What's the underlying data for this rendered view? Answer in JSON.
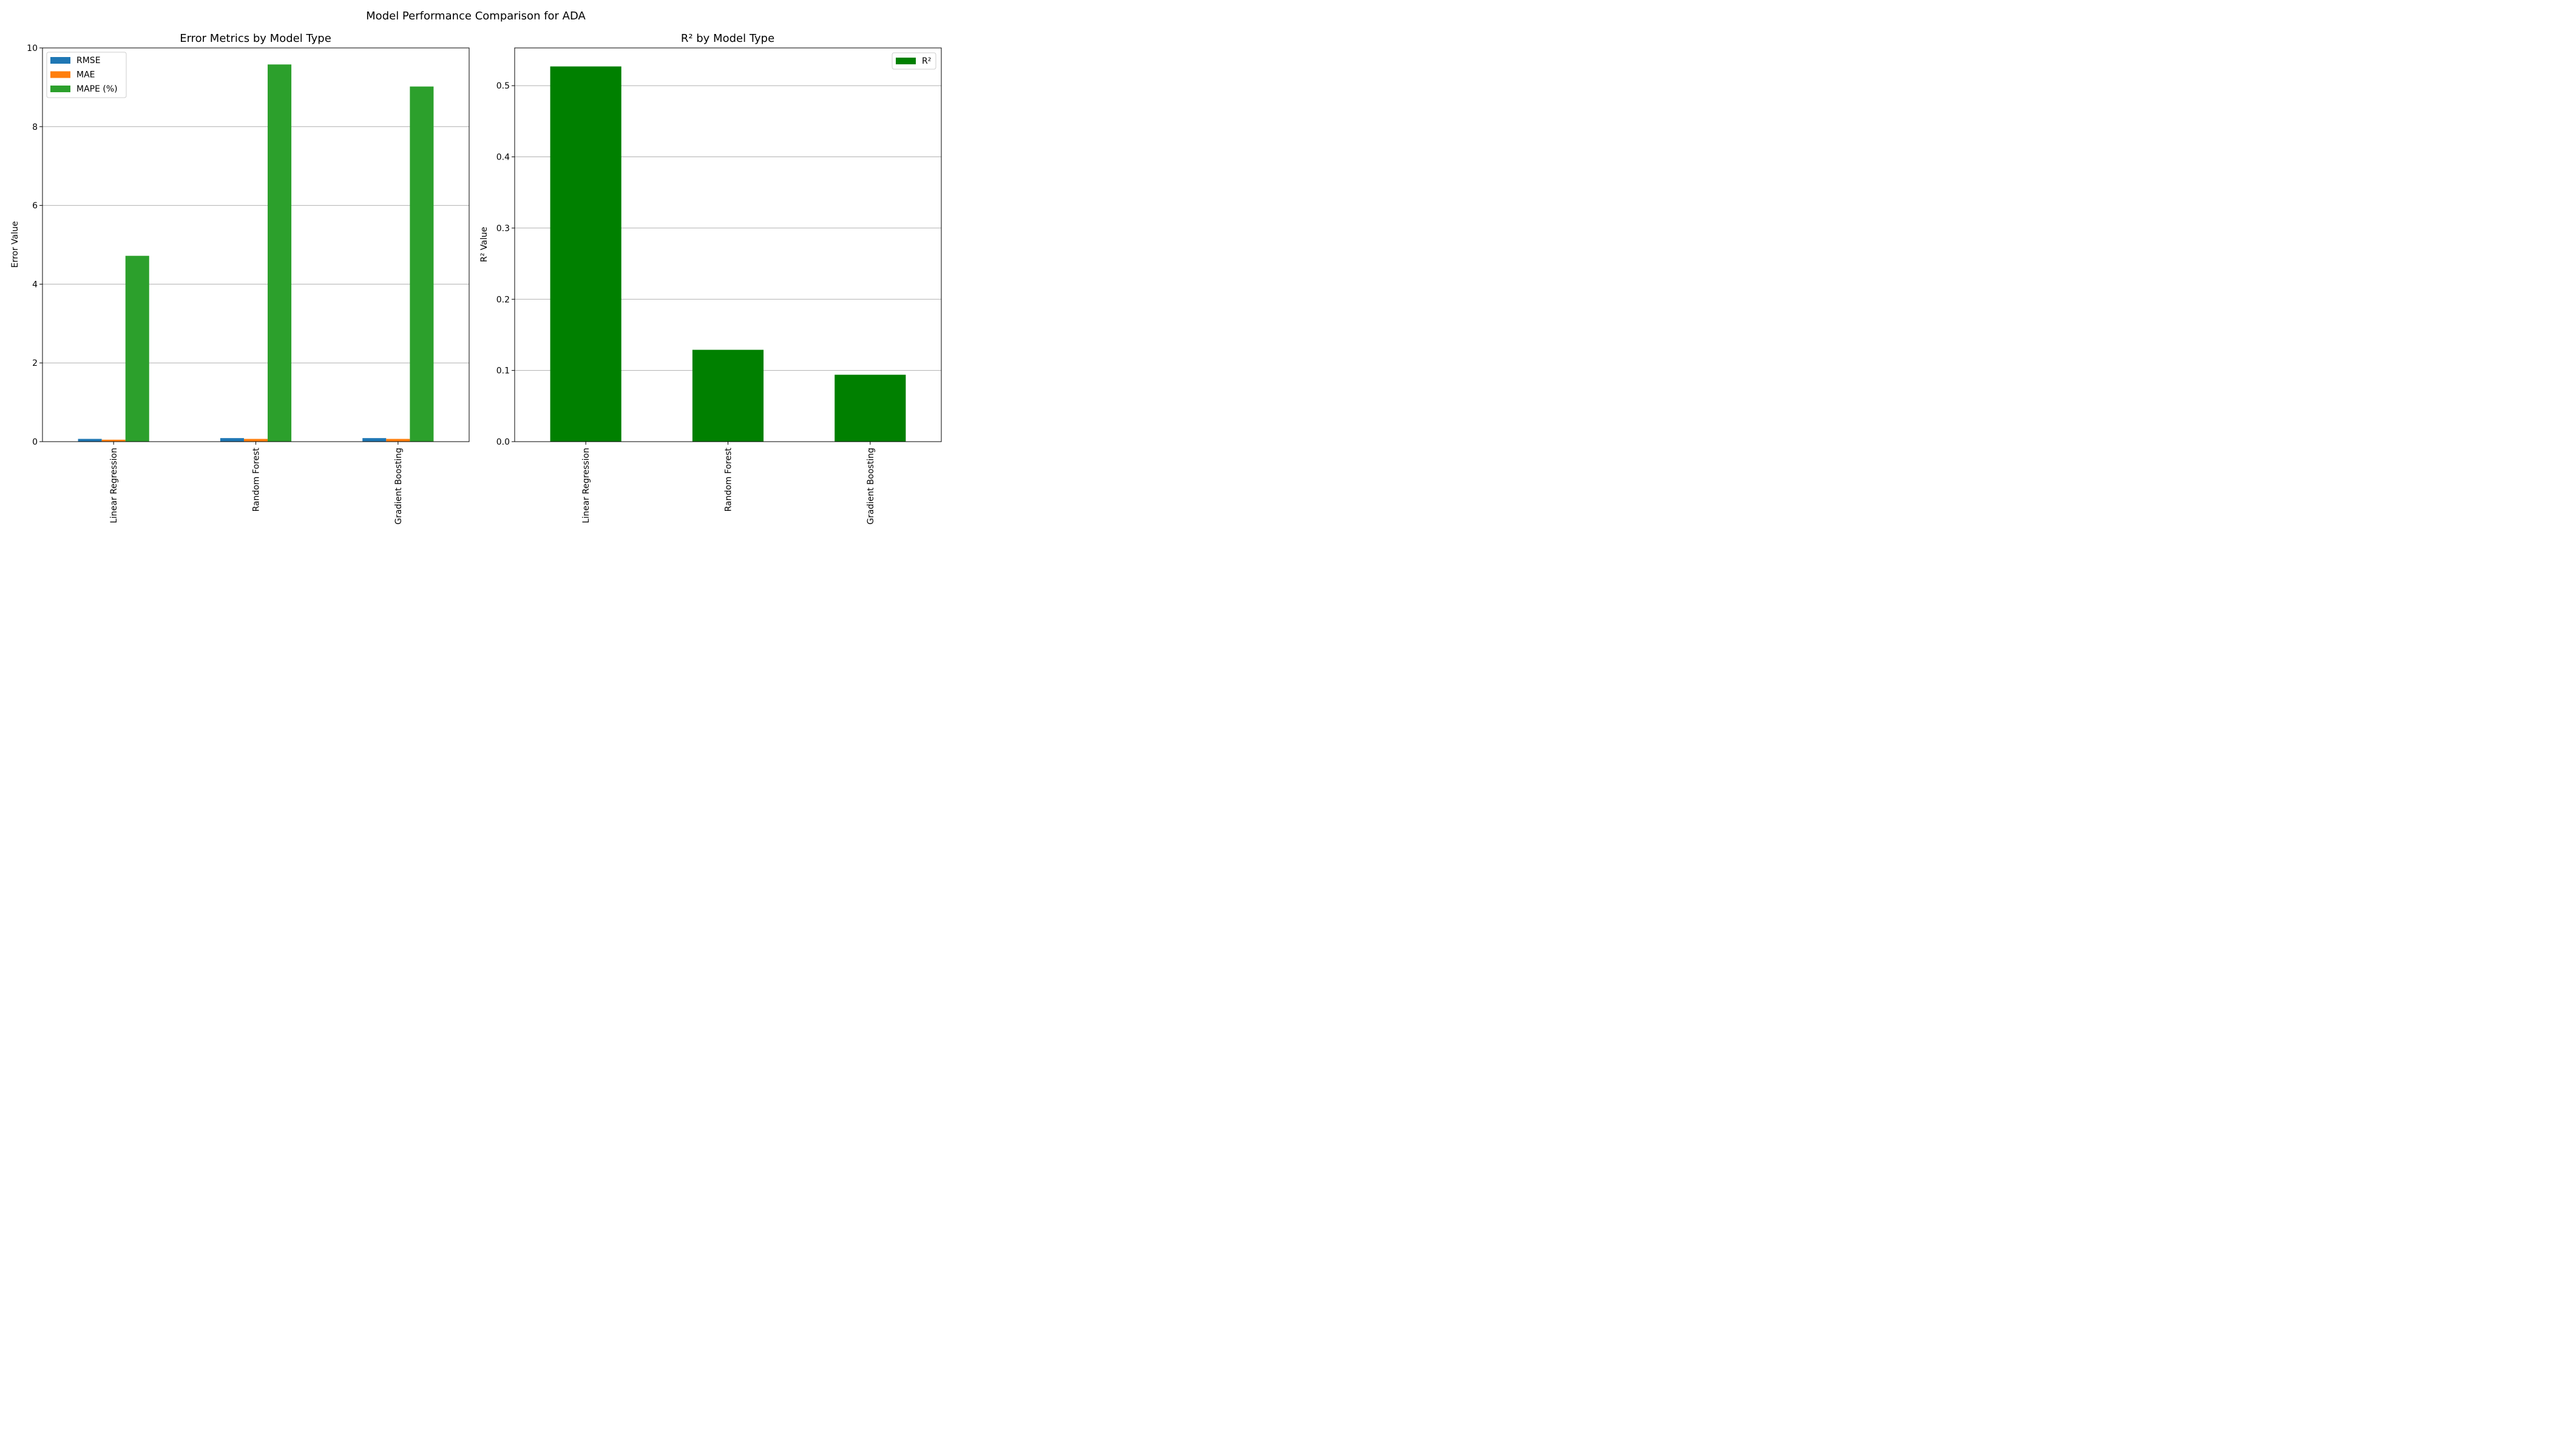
{
  "figure": {
    "title": "Model Performance Comparison for ADA"
  },
  "colors": {
    "rmse": "#1f77b4",
    "mae": "#ff7f0e",
    "mape": "#2ca02c",
    "r2": "#008000",
    "grid": "#b0b0b0"
  },
  "chart_data": [
    {
      "type": "bar",
      "title": "Error Metrics by Model Type",
      "xlabel": "",
      "ylabel": "Error Value",
      "categories": [
        "Linear Regression",
        "Random Forest",
        "Gradient Boosting"
      ],
      "series": [
        {
          "name": "RMSE",
          "values": [
            0.07,
            0.09,
            0.09
          ]
        },
        {
          "name": "MAE",
          "values": [
            0.05,
            0.07,
            0.07
          ]
        },
        {
          "name": "MAPE (%)",
          "values": [
            4.72,
            9.58,
            9.02
          ]
        }
      ],
      "ylim": [
        0,
        10
      ],
      "yticks": [
        "0",
        "2",
        "4",
        "6",
        "8",
        "10"
      ],
      "grid": "y",
      "legend": "upper left"
    },
    {
      "type": "bar",
      "title": "R² by Model Type",
      "xlabel": "",
      "ylabel": "R² Value",
      "categories": [
        "Linear Regression",
        "Random Forest",
        "Gradient Boosting"
      ],
      "series": [
        {
          "name": "R²",
          "values": [
            0.527,
            0.129,
            0.094
          ]
        }
      ],
      "ylim": [
        0,
        0.553
      ],
      "yticks": [
        "0.0",
        "0.1",
        "0.2",
        "0.3",
        "0.4",
        "0.5"
      ],
      "grid": "y",
      "legend": "upper right"
    }
  ]
}
